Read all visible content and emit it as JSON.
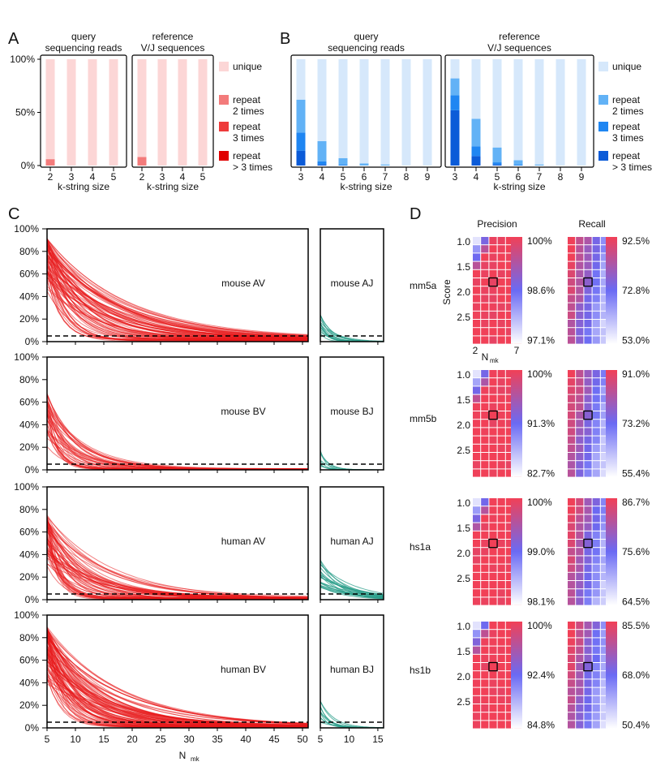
{
  "colors": {
    "red_unique": "#fcd6d6",
    "red_2": "#f37b7b",
    "red_3": "#ee3b3b",
    "red_gt3": "#e00000",
    "blue_unique": "#d6e8fb",
    "blue_2": "#62b2f6",
    "blue_3": "#1f86f2",
    "blue_gt3": "#0b5bd8",
    "v_curve": "#e8191c",
    "j_curve": "#2a9d8a",
    "heat_high": "#f14057",
    "heat_mid": "#6a6af4",
    "heat_low": "#ffffff"
  },
  "panels": {
    "A": "A",
    "B": "B",
    "C": "C",
    "D": "D"
  },
  "chart_data": [
    {
      "id": "A",
      "type": "bar",
      "stacked": true,
      "facets": [
        "query\nsequencing reads",
        "reference\nV/J sequences"
      ],
      "categories": [
        "2",
        "3",
        "4",
        "5"
      ],
      "xlabel": "k-string size",
      "yticks": [
        "0%",
        "50%",
        "100%"
      ],
      "ylim": [
        0,
        100
      ],
      "legend": [
        "unique",
        "repeat\n2 times",
        "repeat\n3 times",
        "repeat\n> 3 times"
      ],
      "series": [
        {
          "name": "repeat > 3 times",
          "facets": [
            [
              0,
              0,
              0,
              0
            ],
            [
              0,
              0,
              0,
              0
            ]
          ]
        },
        {
          "name": "repeat 3 times",
          "facets": [
            [
              0,
              0,
              0,
              0
            ],
            [
              0,
              0,
              0,
              0
            ]
          ]
        },
        {
          "name": "repeat 2 times",
          "facets": [
            [
              6,
              0,
              0,
              0
            ],
            [
              8,
              0,
              0,
              0
            ]
          ]
        },
        {
          "name": "unique",
          "facets": [
            [
              94,
              100,
              100,
              100
            ],
            [
              92,
              100,
              100,
              100
            ]
          ]
        }
      ]
    },
    {
      "id": "B",
      "type": "bar",
      "stacked": true,
      "facets": [
        "query\nsequencing reads",
        "reference\nV/J sequences"
      ],
      "categories": [
        "3",
        "4",
        "5",
        "6",
        "7",
        "8",
        "9"
      ],
      "xlabel": "k-string size",
      "legend": [
        "unique",
        "repeat\n2 times",
        "repeat\n3 times",
        "repeat\n> 3 times"
      ],
      "series": [
        {
          "name": "repeat > 3 times",
          "facets": [
            [
              14,
              1,
              0,
              0,
              0,
              0,
              0
            ],
            [
              52,
              9,
              1,
              0,
              0,
              0,
              0
            ]
          ]
        },
        {
          "name": "repeat 3 times",
          "facets": [
            [
              17,
              3,
              1,
              0,
              0,
              0,
              0
            ],
            [
              14,
              9,
              2,
              1,
              0,
              0,
              0
            ]
          ]
        },
        {
          "name": "repeat 2 times",
          "facets": [
            [
              31,
              19,
              6,
              2,
              1,
              0,
              0
            ],
            [
              16,
              26,
              14,
              4,
              1,
              0,
              0
            ]
          ]
        },
        {
          "name": "unique",
          "facets": [
            [
              38,
              77,
              93,
              98,
              99,
              100,
              100
            ],
            [
              18,
              56,
              83,
              95,
              99,
              100,
              100
            ]
          ]
        }
      ]
    },
    {
      "id": "C",
      "type": "line",
      "xlabel": "N",
      "xlabel_sub": "mk",
      "yticks": [
        "0%",
        "20%",
        "40%",
        "60%",
        "80%",
        "100%"
      ],
      "ylim": [
        0,
        100
      ],
      "threshold": 5,
      "v_xlim": [
        5,
        51
      ],
      "v_xticks": [
        "5",
        "10",
        "15",
        "20",
        "25",
        "30",
        "35",
        "40",
        "45",
        "50"
      ],
      "j_xlim": [
        5,
        16
      ],
      "j_xticks": [
        "5",
        "10",
        "15"
      ],
      "rows": [
        {
          "v_label": "mouse AV",
          "j_label": "mouse AJ",
          "v_curves": {
            "count": 80,
            "start": [
              40,
              92
            ],
            "tau": [
              2,
              15
            ],
            "floor": [
              0,
              3
            ]
          },
          "j_curves": {
            "count": 14,
            "start": [
              6,
              26
            ],
            "tau": [
              1,
              3
            ]
          }
        },
        {
          "v_label": "mouse BV",
          "j_label": "mouse BJ",
          "v_curves": {
            "count": 40,
            "start": [
              10,
              68
            ],
            "tau": [
              1.5,
              7
            ],
            "floor": [
              0,
              1
            ]
          },
          "j_curves": {
            "count": 8,
            "start": [
              3,
              18
            ],
            "tau": [
              0.8,
              2
            ]
          }
        },
        {
          "v_label": "human AV",
          "j_label": "human AJ",
          "v_curves": {
            "count": 60,
            "start": [
              20,
              75
            ],
            "tau": [
              1.5,
              12
            ],
            "floor": [
              0,
              2
            ]
          },
          "j_curves": {
            "count": 22,
            "start": [
              10,
              38
            ],
            "tau": [
              3,
              8
            ]
          }
        },
        {
          "v_label": "human BV",
          "j_label": "human BJ",
          "v_curves": {
            "count": 90,
            "start": [
              30,
              90
            ],
            "tau": [
              2,
              14
            ],
            "floor": [
              0,
              2
            ]
          },
          "j_curves": {
            "count": 10,
            "start": [
              4,
              24
            ],
            "tau": [
              1,
              3
            ]
          }
        }
      ]
    },
    {
      "id": "D",
      "type": "heatmap",
      "columns": [
        "Precision",
        "Recall"
      ],
      "y_axis_label": "Score",
      "y_ticks": [
        "1.0",
        "1.5",
        "2.0",
        "2.5"
      ],
      "x_tick_lo": "2",
      "x_tick_hi": "7",
      "x_axis_label": "N",
      "x_axis_sub": "mk",
      "grid": {
        "cols": 6,
        "rows": 13,
        "selected": [
          2,
          5
        ]
      },
      "rows": [
        {
          "label": "mm5a",
          "precision": {
            "max": "100%",
            "mid": "98.6%",
            "min": "97.1%",
            "base": 0.95,
            "range": 0.1
          },
          "recall": {
            "max": "92.5%",
            "mid": "72.8%",
            "min": "53.0%",
            "base": 0.5,
            "range": 0.5
          }
        },
        {
          "label": "mm5b",
          "precision": {
            "max": "100%",
            "mid": "91.3%",
            "min": "82.7%",
            "base": 0.85,
            "range": 0.3
          },
          "recall": {
            "max": "91.0%",
            "mid": "73.2%",
            "min": "55.4%",
            "base": 0.55,
            "range": 0.55
          }
        },
        {
          "label": "hs1a",
          "precision": {
            "max": "100%",
            "mid": "99.0%",
            "min": "98.1%",
            "base": 0.95,
            "range": 0.1
          },
          "recall": {
            "max": "86.7%",
            "mid": "75.6%",
            "min": "64.5%",
            "base": 0.55,
            "range": 0.45
          }
        },
        {
          "label": "hs1b",
          "precision": {
            "max": "100%",
            "mid": "92.4%",
            "min": "84.8%",
            "base": 0.9,
            "range": 0.2
          },
          "recall": {
            "max": "85.5%",
            "mid": "68.0%",
            "min": "50.4%",
            "base": 0.5,
            "range": 0.55
          }
        }
      ]
    }
  ]
}
